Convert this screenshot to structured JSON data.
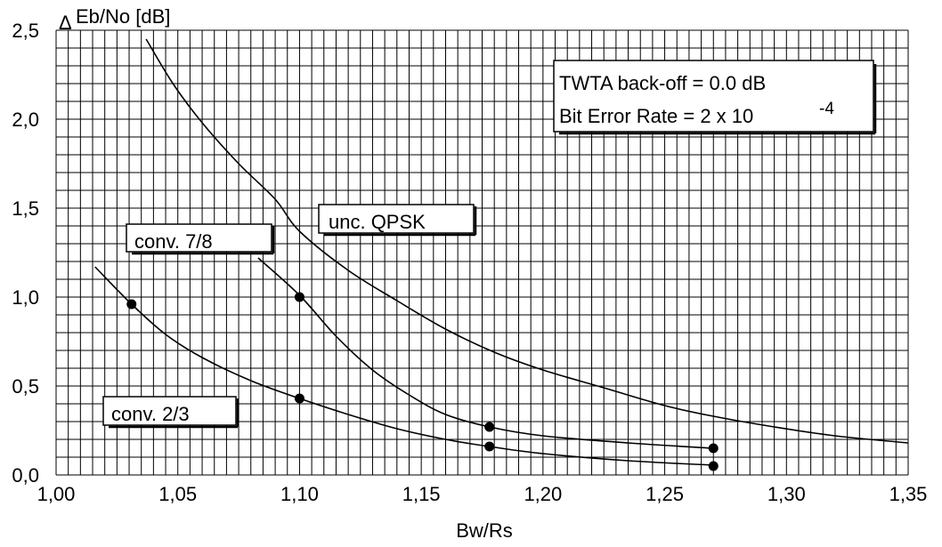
{
  "chart_data": {
    "type": "line",
    "ylabel_delta": "Δ",
    "ylabel": "Eb/No [dB]",
    "xlabel": "Bw/Rs",
    "xlim": [
      1.0,
      1.35
    ],
    "ylim": [
      0.0,
      2.5
    ],
    "grid": true,
    "x_ticks": [
      "1,00",
      "1,05",
      "1,10",
      "1,15",
      "1,20",
      "1,25",
      "1,30",
      "1,35"
    ],
    "y_ticks": [
      "0,0",
      "0,5",
      "1,0",
      "1,5",
      "2,0",
      "2,5"
    ],
    "series": [
      {
        "name": "unc. QPSK",
        "points": [
          [
            1.037,
            2.45
          ],
          [
            1.048,
            2.2
          ],
          [
            1.06,
            1.98
          ],
          [
            1.075,
            1.75
          ],
          [
            1.09,
            1.55
          ],
          [
            1.1,
            1.37
          ],
          [
            1.12,
            1.15
          ],
          [
            1.14,
            0.98
          ],
          [
            1.16,
            0.82
          ],
          [
            1.18,
            0.69
          ],
          [
            1.2,
            0.59
          ],
          [
            1.225,
            0.49
          ],
          [
            1.25,
            0.39
          ],
          [
            1.27,
            0.33
          ],
          [
            1.295,
            0.27
          ],
          [
            1.32,
            0.22
          ],
          [
            1.35,
            0.18
          ]
        ],
        "markers": []
      },
      {
        "name": "conv. 7/8",
        "points": [
          [
            1.083,
            1.22
          ],
          [
            1.1,
            1.01
          ],
          [
            1.115,
            0.78
          ],
          [
            1.13,
            0.59
          ],
          [
            1.145,
            0.45
          ],
          [
            1.16,
            0.34
          ],
          [
            1.178,
            0.27
          ],
          [
            1.2,
            0.22
          ],
          [
            1.235,
            0.18
          ],
          [
            1.27,
            0.15
          ]
        ],
        "markers": [
          [
            1.1,
            1.0
          ],
          [
            1.178,
            0.27
          ],
          [
            1.27,
            0.15
          ]
        ]
      },
      {
        "name": "conv. 2/3",
        "points": [
          [
            1.016,
            1.17
          ],
          [
            1.031,
            0.96
          ],
          [
            1.045,
            0.79
          ],
          [
            1.06,
            0.66
          ],
          [
            1.08,
            0.53
          ],
          [
            1.1,
            0.43
          ],
          [
            1.12,
            0.34
          ],
          [
            1.14,
            0.26
          ],
          [
            1.16,
            0.2
          ],
          [
            1.178,
            0.16
          ],
          [
            1.2,
            0.12
          ],
          [
            1.235,
            0.08
          ],
          [
            1.27,
            0.055
          ]
        ],
        "markers": [
          [
            1.031,
            0.96
          ],
          [
            1.1,
            0.43
          ],
          [
            1.178,
            0.16
          ],
          [
            1.27,
            0.05
          ]
        ]
      }
    ],
    "annotation": {
      "line1": "TWTA back-off = 0.0 dB",
      "line2_prefix": "Bit Error Rate = 2 x 10",
      "line2_sup": "-4"
    }
  }
}
